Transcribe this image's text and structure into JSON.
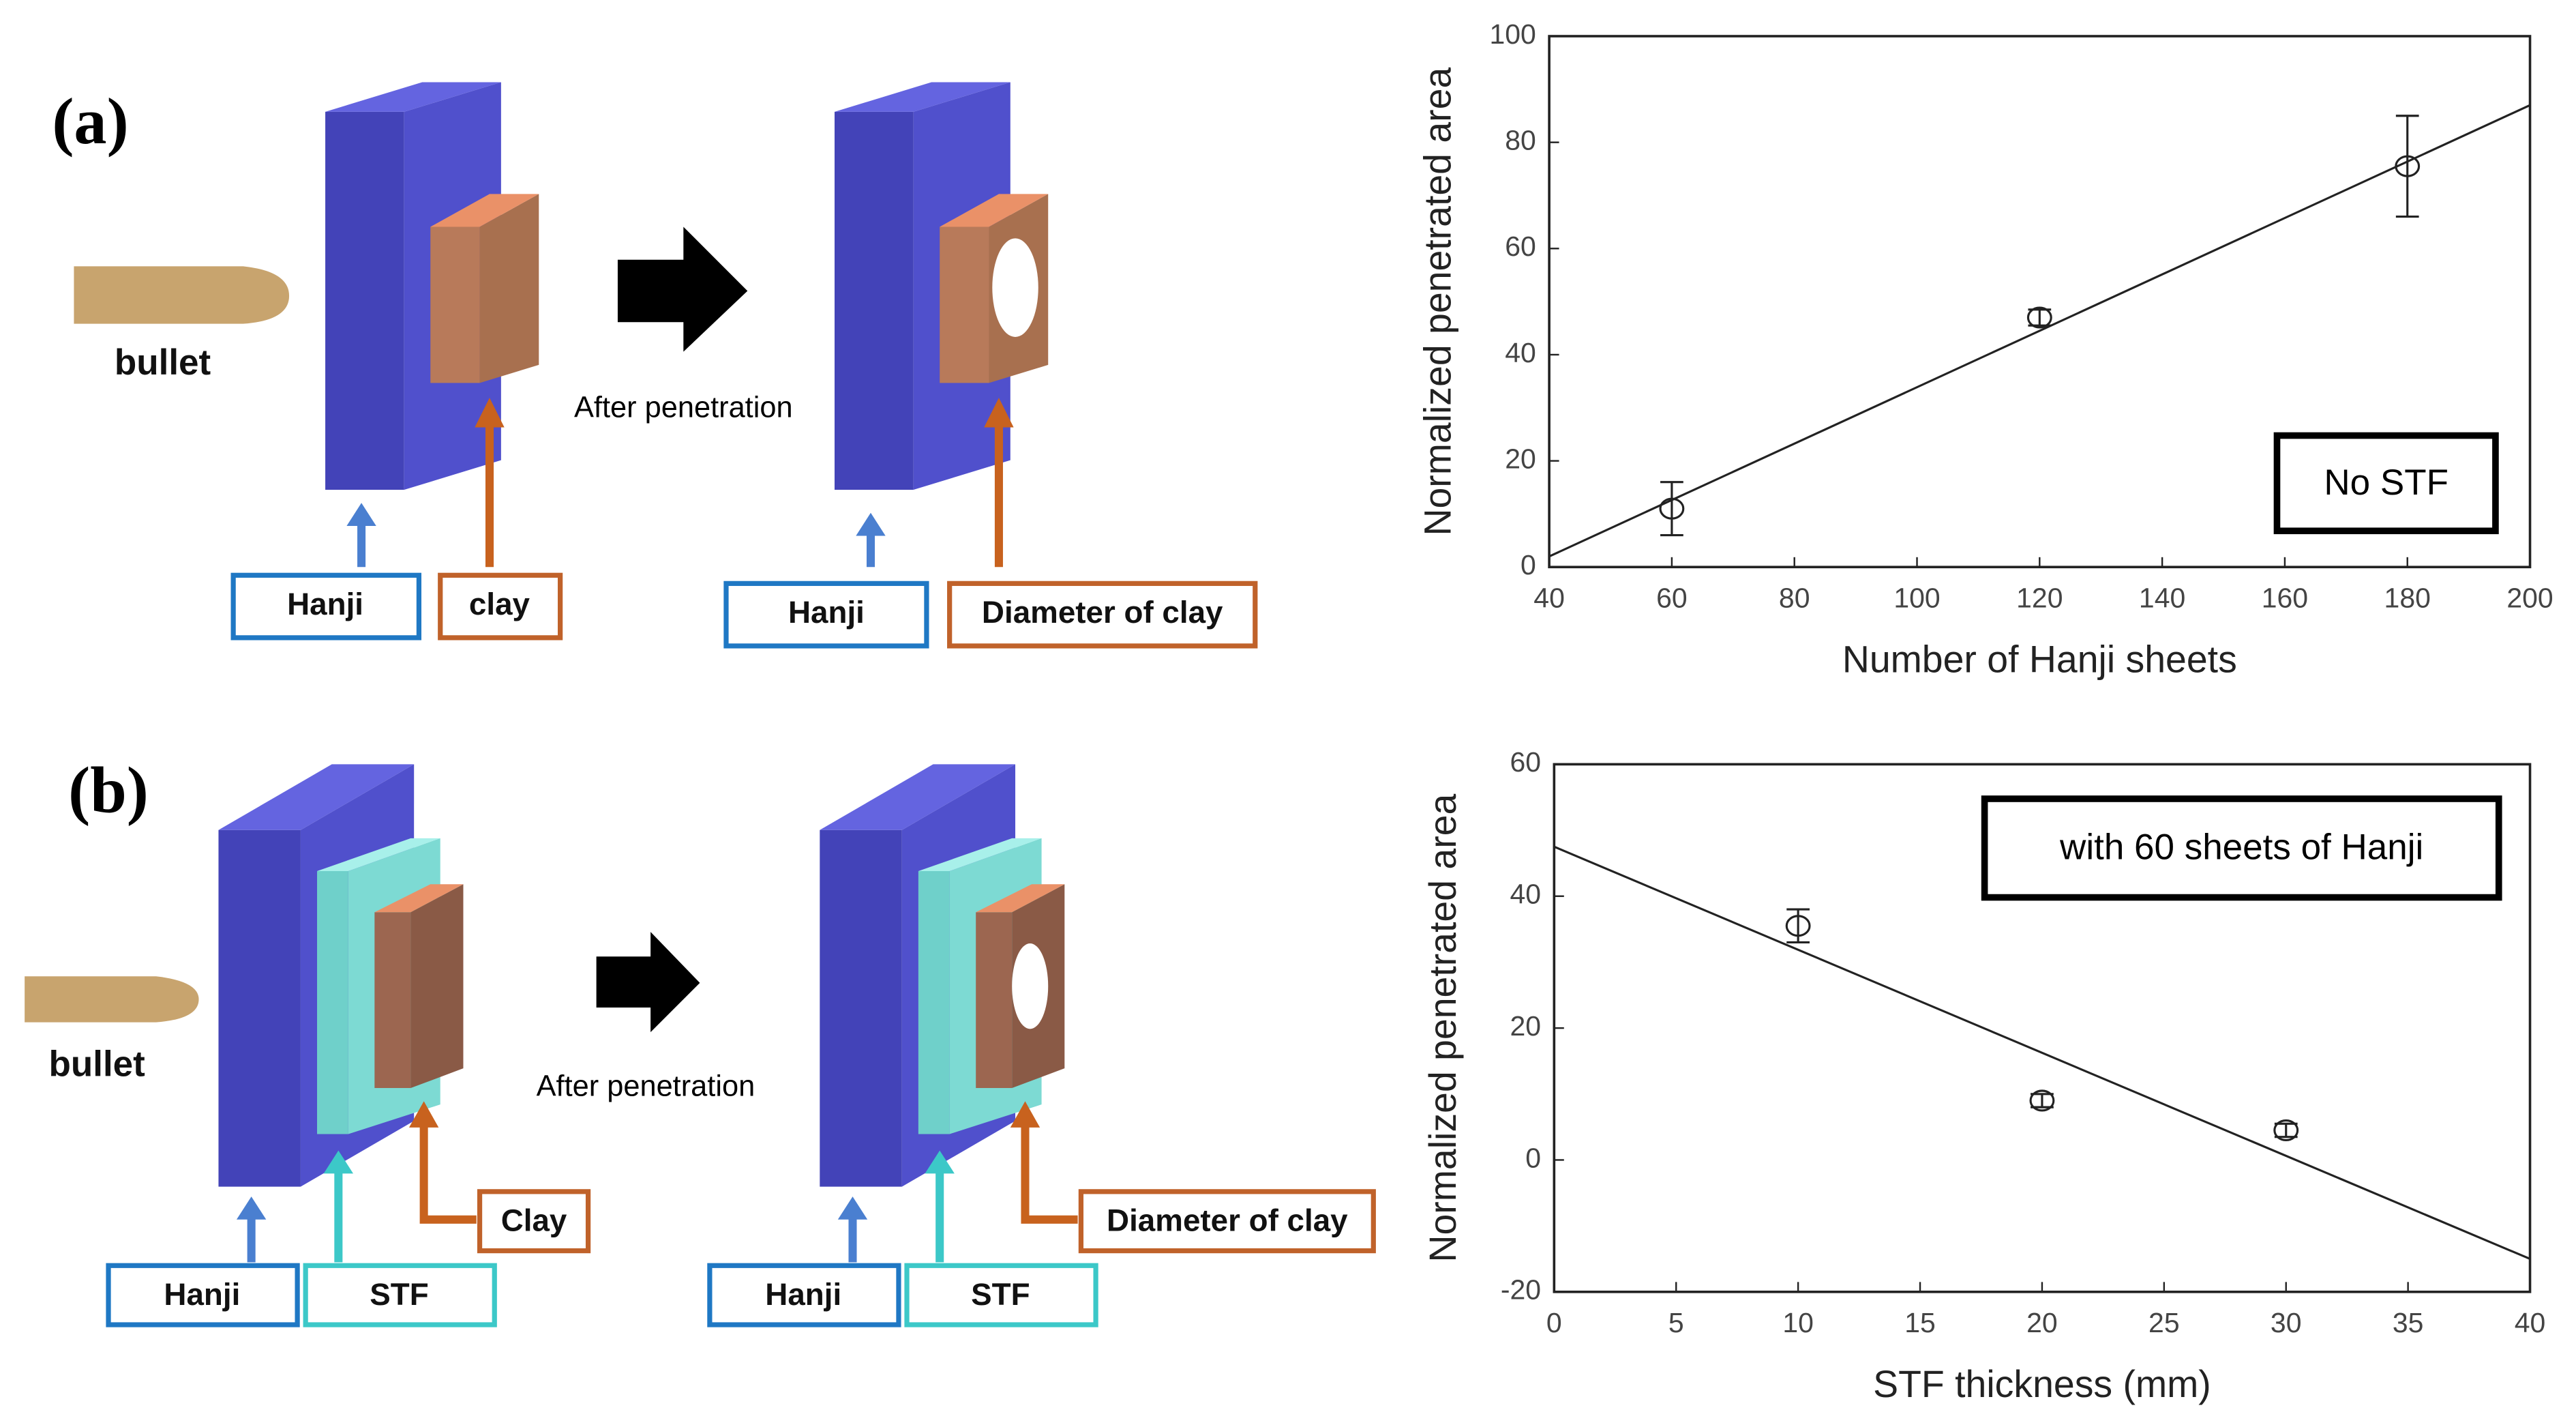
{
  "figure": {
    "panel_a": {
      "tag": "(a)",
      "bullet": "bullet",
      "after": "After penetration",
      "hanji_1": "Hanji",
      "clay": "clay",
      "hanji_2": "Hanji",
      "diameter": "Diameter of clay"
    },
    "panel_b": {
      "tag": "(b)",
      "bullet": "bullet",
      "after": "After penetration",
      "hanji_1": "Hanji",
      "stf_1": "STF",
      "clay": "Clay",
      "hanji_2": "Hanji",
      "stf_2": "STF",
      "diameter": "Diameter of clay"
    }
  },
  "chart_data": [
    {
      "type": "scatter",
      "x_label": "Number of Hanji sheets",
      "y_label": "Normalized penetrated area",
      "annotation": "No STF",
      "x": [
        60,
        120,
        180
      ],
      "values": [
        11,
        47,
        75.5
      ],
      "errors": [
        5,
        1.5,
        9.5
      ],
      "fit": {
        "x": [
          40,
          200
        ],
        "y": [
          2,
          87
        ]
      },
      "xlim": [
        40,
        200
      ],
      "xticks": [
        40,
        60,
        80,
        100,
        120,
        140,
        160,
        180,
        200
      ],
      "ylim": [
        0,
        100
      ],
      "yticks": [
        0,
        20,
        40,
        60,
        80,
        100
      ]
    },
    {
      "type": "scatter",
      "x_label": "STF thickness (mm)",
      "y_label": "Normalized penetrated area",
      "annotation": "with 60 sheets of Hanji",
      "x": [
        10,
        20,
        30
      ],
      "values": [
        35.5,
        9,
        4.5
      ],
      "errors": [
        2.5,
        1,
        1
      ],
      "fit": {
        "x": [
          0,
          40
        ],
        "y": [
          47.5,
          -15
        ]
      },
      "xlim": [
        0,
        40
      ],
      "xticks": [
        0,
        5,
        10,
        15,
        20,
        25,
        30,
        35,
        40
      ],
      "ylim": [
        -20,
        60
      ],
      "yticks": [
        -20,
        0,
        20,
        40,
        60
      ]
    }
  ]
}
